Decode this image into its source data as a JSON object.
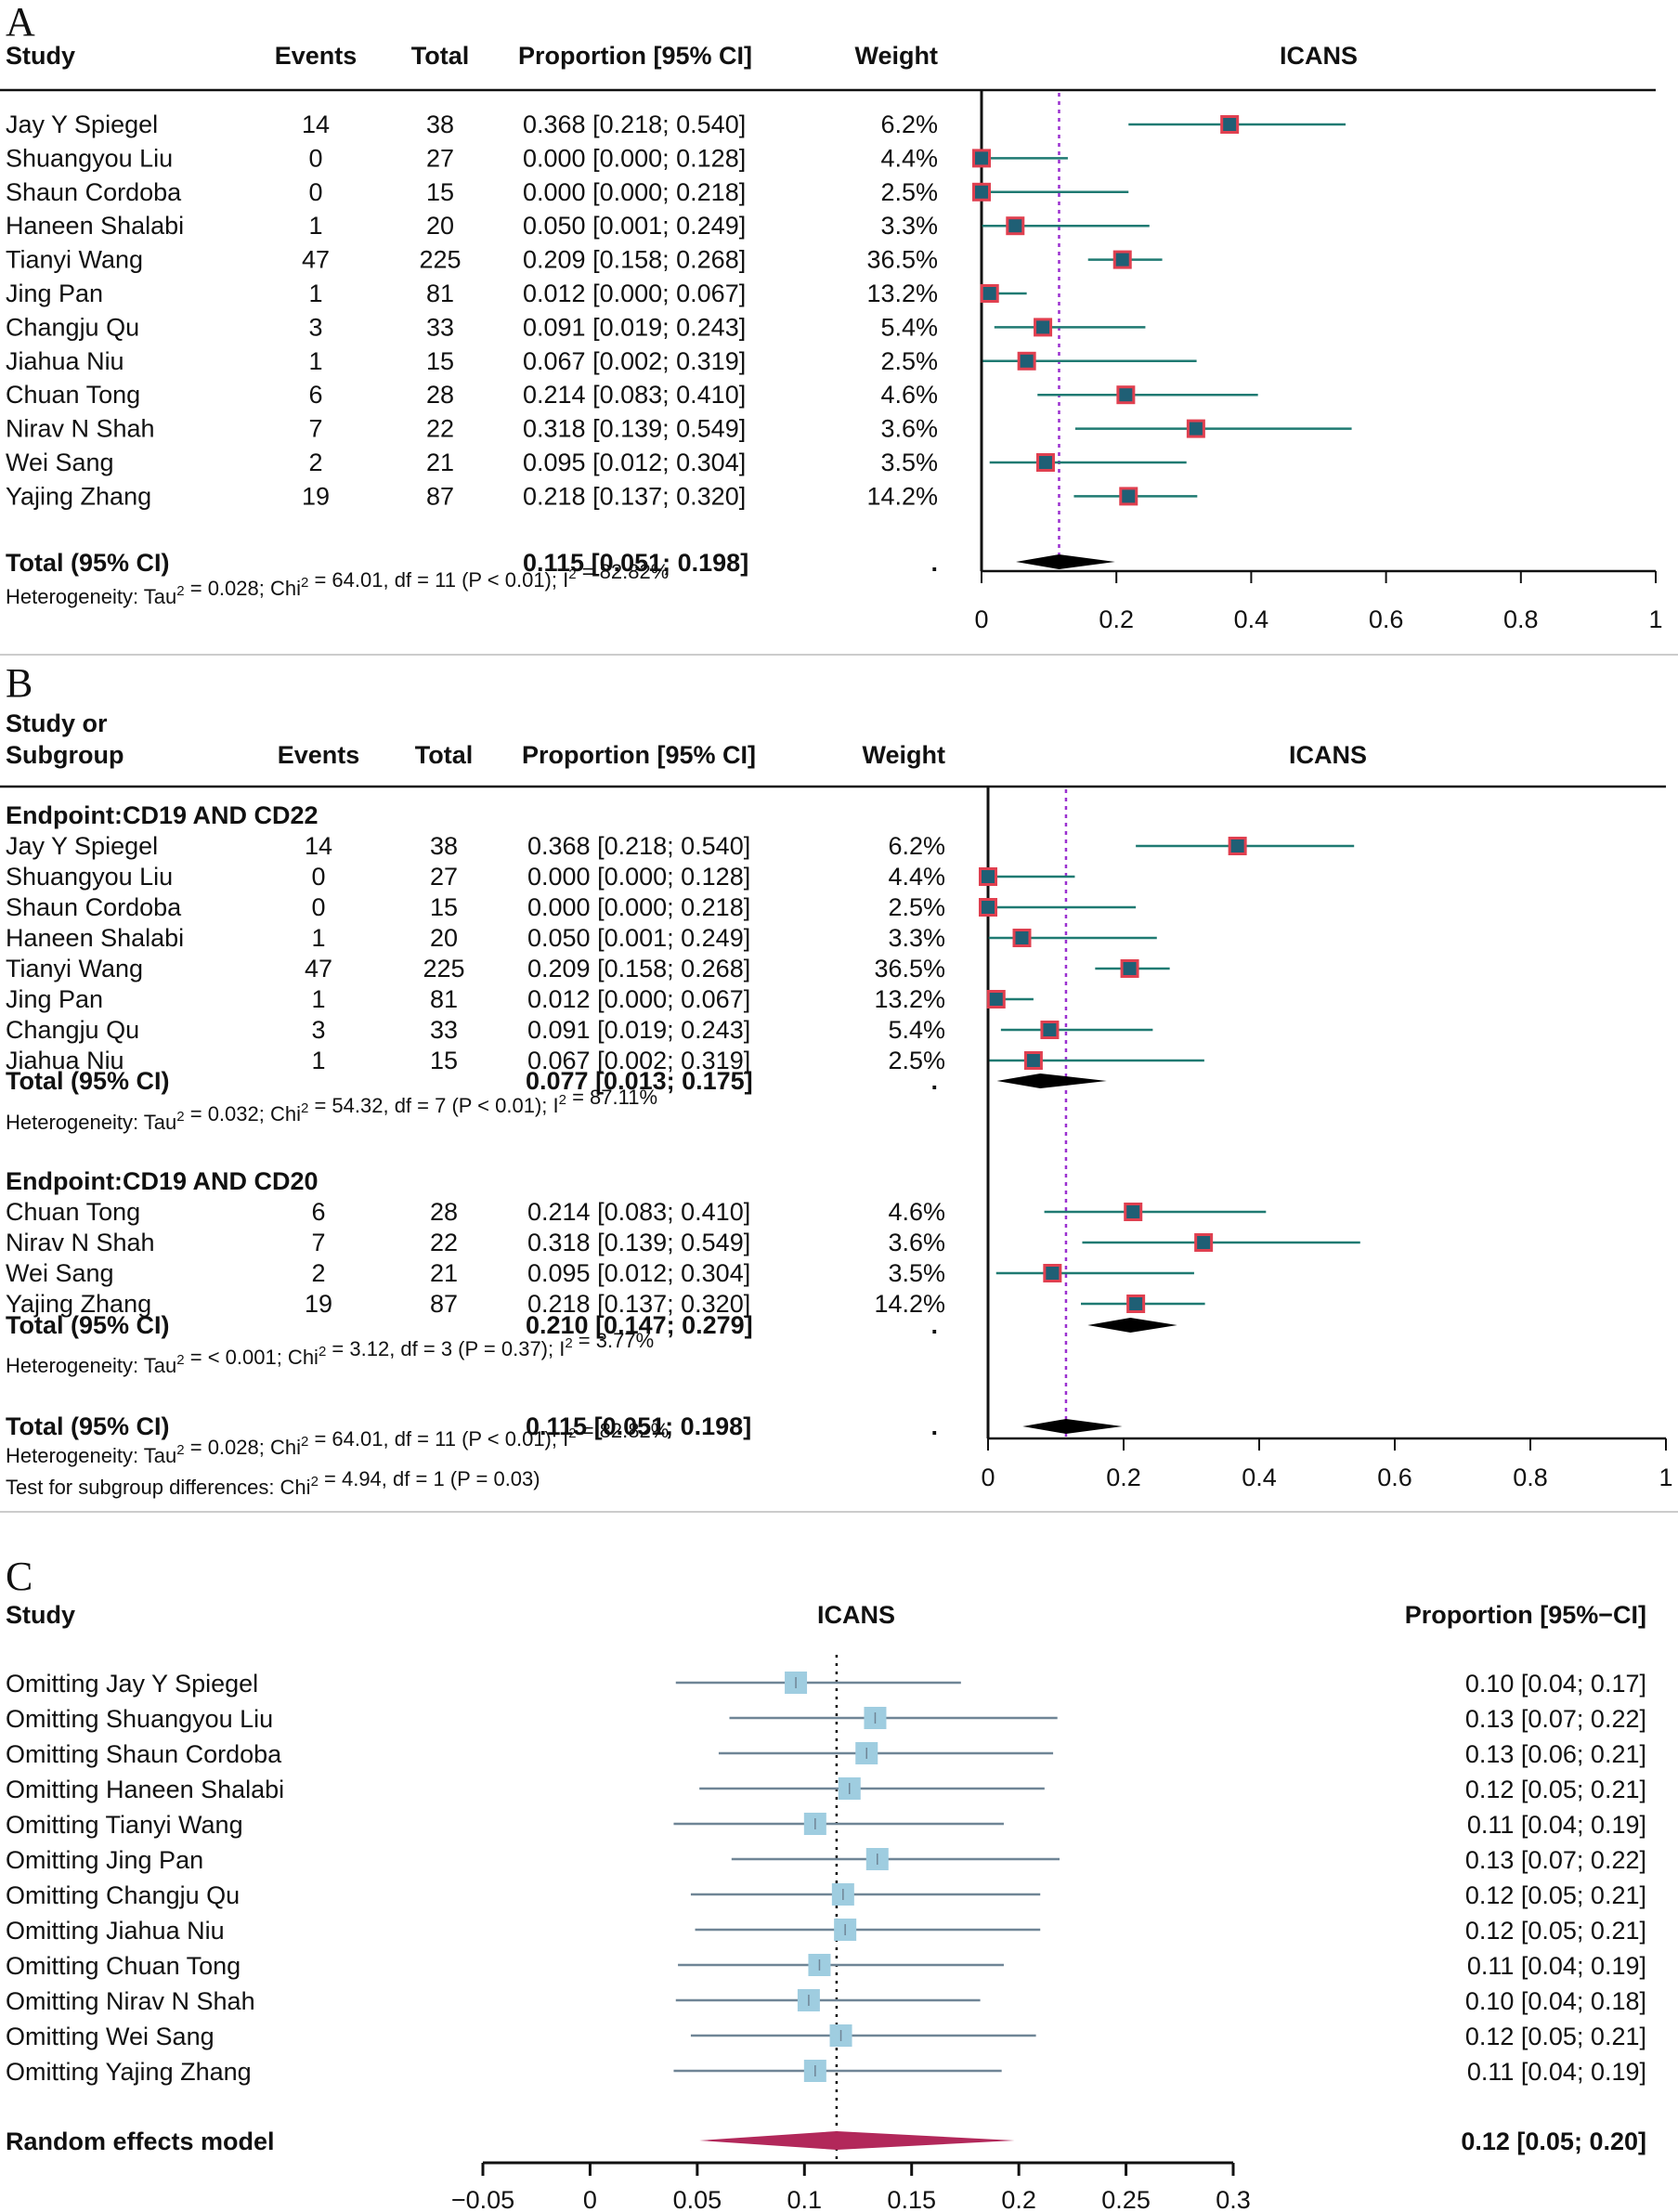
{
  "chart_data": [
    {
      "panel": "A",
      "type": "forest",
      "title": "ICANS",
      "columns": [
        "Study",
        "Events",
        "Total",
        "Proportion [95% CI]",
        "Weight"
      ],
      "studies": [
        {
          "study": "Jay Y Spiegel",
          "events": "14",
          "total": "38",
          "ci_text": "0.368 [0.218; 0.540]",
          "weight": "6.2%",
          "est": 0.368,
          "lo": 0.218,
          "hi": 0.54
        },
        {
          "study": "Shuangyou Liu",
          "events": "0",
          "total": "27",
          "ci_text": "0.000 [0.000; 0.128]",
          "weight": "4.4%",
          "est": 0.0,
          "lo": 0.0,
          "hi": 0.128
        },
        {
          "study": "Shaun Cordoba",
          "events": "0",
          "total": "15",
          "ci_text": "0.000 [0.000; 0.218]",
          "weight": "2.5%",
          "est": 0.0,
          "lo": 0.0,
          "hi": 0.218
        },
        {
          "study": "Haneen Shalabi",
          "events": "1",
          "total": "20",
          "ci_text": "0.050 [0.001; 0.249]",
          "weight": "3.3%",
          "est": 0.05,
          "lo": 0.001,
          "hi": 0.249
        },
        {
          "study": "Tianyi Wang",
          "events": "47",
          "total": "225",
          "ci_text": "0.209 [0.158; 0.268]",
          "weight": "36.5%",
          "est": 0.209,
          "lo": 0.158,
          "hi": 0.268
        },
        {
          "study": "Jing Pan",
          "events": "1",
          "total": "81",
          "ci_text": "0.012 [0.000; 0.067]",
          "weight": "13.2%",
          "est": 0.012,
          "lo": 0.0,
          "hi": 0.067
        },
        {
          "study": "Changju Qu",
          "events": "3",
          "total": "33",
          "ci_text": "0.091 [0.019; 0.243]",
          "weight": "5.4%",
          "est": 0.091,
          "lo": 0.019,
          "hi": 0.243
        },
        {
          "study": "Jiahua Niu",
          "events": "1",
          "total": "15",
          "ci_text": "0.067 [0.002; 0.319]",
          "weight": "2.5%",
          "est": 0.067,
          "lo": 0.002,
          "hi": 0.319
        },
        {
          "study": "Chuan Tong",
          "events": "6",
          "total": "28",
          "ci_text": "0.214 [0.083; 0.410]",
          "weight": "4.6%",
          "est": 0.214,
          "lo": 0.083,
          "hi": 0.41
        },
        {
          "study": "Nirav N Shah",
          "events": "7",
          "total": "22",
          "ci_text": "0.318 [0.139; 0.549]",
          "weight": "3.6%",
          "est": 0.318,
          "lo": 0.139,
          "hi": 0.549
        },
        {
          "study": "Wei Sang",
          "events": "2",
          "total": "21",
          "ci_text": "0.095 [0.012; 0.304]",
          "weight": "3.5%",
          "est": 0.095,
          "lo": 0.012,
          "hi": 0.304
        },
        {
          "study": "Yajing Zhang",
          "events": "19",
          "total": "87",
          "ci_text": "0.218 [0.137; 0.320]",
          "weight": "14.2%",
          "est": 0.218,
          "lo": 0.137,
          "hi": 0.32
        }
      ],
      "overall": {
        "label": "Total (95% CI)",
        "ci_text": "0.115 [0.051; 0.198]",
        "weight": ".",
        "est": 0.115,
        "lo": 0.051,
        "hi": 0.198
      },
      "heterogeneity": {
        "prefix": "Heterogeneity: Tau",
        "s1": "2",
        "mid1": " = 0.028; Chi",
        "s2": "2",
        "mid2": " = 64.01, df = 11 (P < 0.01); I",
        "s3": "2",
        "suffix": " = 82.82%"
      },
      "xlim": [
        0,
        1
      ],
      "ticks": [
        "0",
        "0.2",
        "0.4",
        "0.6",
        "0.8",
        "1"
      ],
      "tick_values": [
        0,
        0.2,
        0.4,
        0.6,
        0.8,
        1
      ],
      "reference_line": 0.115
    },
    {
      "panel": "B",
      "type": "forest",
      "title": "ICANS",
      "columns": [
        "Study or",
        "Subgroup",
        "Events",
        "Total",
        "Proportion [95% CI]",
        "Weight"
      ],
      "subgroups": [
        {
          "label": "Endpoint:CD19 AND CD22",
          "studies": [
            {
              "study": "Jay Y Spiegel",
              "events": "14",
              "total": "38",
              "ci_text": "0.368 [0.218; 0.540]",
              "weight": "6.2%",
              "est": 0.368,
              "lo": 0.218,
              "hi": 0.54
            },
            {
              "study": "Shuangyou Liu",
              "events": "0",
              "total": "27",
              "ci_text": "0.000 [0.000; 0.128]",
              "weight": "4.4%",
              "est": 0.0,
              "lo": 0.0,
              "hi": 0.128
            },
            {
              "study": "Shaun Cordoba",
              "events": "0",
              "total": "15",
              "ci_text": "0.000 [0.000; 0.218]",
              "weight": "2.5%",
              "est": 0.0,
              "lo": 0.0,
              "hi": 0.218
            },
            {
              "study": "Haneen Shalabi",
              "events": "1",
              "total": "20",
              "ci_text": "0.050 [0.001; 0.249]",
              "weight": "3.3%",
              "est": 0.05,
              "lo": 0.001,
              "hi": 0.249
            },
            {
              "study": "Tianyi Wang",
              "events": "47",
              "total": "225",
              "ci_text": "0.209 [0.158; 0.268]",
              "weight": "36.5%",
              "est": 0.209,
              "lo": 0.158,
              "hi": 0.268
            },
            {
              "study": "Jing Pan",
              "events": "1",
              "total": "81",
              "ci_text": "0.012 [0.000; 0.067]",
              "weight": "13.2%",
              "est": 0.012,
              "lo": 0.0,
              "hi": 0.067
            },
            {
              "study": "Changju Qu",
              "events": "3",
              "total": "33",
              "ci_text": "0.091 [0.019; 0.243]",
              "weight": "5.4%",
              "est": 0.091,
              "lo": 0.019,
              "hi": 0.243
            },
            {
              "study": "Jiahua Niu",
              "events": "1",
              "total": "15",
              "ci_text": "0.067 [0.002; 0.319]",
              "weight": "2.5%",
              "est": 0.067,
              "lo": 0.002,
              "hi": 0.319
            }
          ],
          "total": {
            "label": "Total (95% CI)",
            "ci_text": "0.077 [0.013; 0.175]",
            "weight": ".",
            "est": 0.077,
            "lo": 0.013,
            "hi": 0.175
          },
          "heterogeneity": {
            "prefix": "Heterogeneity: Tau",
            "s1": "2",
            "mid1": " = 0.032; Chi",
            "s2": "2",
            "mid2": " = 54.32, df = 7 (P < 0.01); I",
            "s3": "2",
            "suffix": " = 87.11%"
          }
        },
        {
          "label": "Endpoint:CD19 AND CD20",
          "studies": [
            {
              "study": "Chuan Tong",
              "events": "6",
              "total": "28",
              "ci_text": "0.214 [0.083; 0.410]",
              "weight": "4.6%",
              "est": 0.214,
              "lo": 0.083,
              "hi": 0.41
            },
            {
              "study": "Nirav N Shah",
              "events": "7",
              "total": "22",
              "ci_text": "0.318 [0.139; 0.549]",
              "weight": "3.6%",
              "est": 0.318,
              "lo": 0.139,
              "hi": 0.549
            },
            {
              "study": "Wei Sang",
              "events": "2",
              "total": "21",
              "ci_text": "0.095 [0.012; 0.304]",
              "weight": "3.5%",
              "est": 0.095,
              "lo": 0.012,
              "hi": 0.304
            },
            {
              "study": "Yajing Zhang",
              "events": "19",
              "total": "87",
              "ci_text": "0.218 [0.137; 0.320]",
              "weight": "14.2%",
              "est": 0.218,
              "lo": 0.137,
              "hi": 0.32
            }
          ],
          "total": {
            "label": "Total (95% CI)",
            "ci_text": "0.210 [0.147; 0.279]",
            "weight": ".",
            "est": 0.21,
            "lo": 0.147,
            "hi": 0.279
          },
          "heterogeneity": {
            "prefix": "Heterogeneity: Tau",
            "s1": "2",
            "mid1": " = < 0.001; Chi",
            "s2": "2",
            "mid2": " = 3.12, df = 3 (P = 0.37); I",
            "s3": "2",
            "suffix": " = 3.77%"
          }
        }
      ],
      "overall": {
        "label": "Total (95% CI)",
        "ci_text": "0.115 [0.051; 0.198]",
        "weight": ".",
        "est": 0.115,
        "lo": 0.051,
        "hi": 0.198
      },
      "heterogeneity": {
        "prefix": "Heterogeneity: Tau",
        "s1": "2",
        "mid1": " = 0.028; Chi",
        "s2": "2",
        "mid2": " = 64.01, df = 11 (P < 0.01); I",
        "s3": "2",
        "suffix": " = 82.82%"
      },
      "subgroup_test": {
        "prefix": "Test for subgroup differences: Chi",
        "s1": "2",
        "suffix": " = 4.94, df = 1 (P = 0.03)"
      },
      "xlim": [
        0,
        1
      ],
      "ticks": [
        "0",
        "0.2",
        "0.4",
        "0.6",
        "0.8",
        "1"
      ],
      "tick_values": [
        0,
        0.2,
        0.4,
        0.6,
        0.8,
        1
      ],
      "reference_line": 0.115
    },
    {
      "panel": "C",
      "type": "forest",
      "title": "ICANS",
      "columns": [
        "Study",
        "Proportion [95%−CI]"
      ],
      "studies": [
        {
          "study": "Omitting Jay Y Spiegel",
          "ci_text": "0.10 [0.04; 0.17]",
          "est": 0.096,
          "lo": 0.04,
          "hi": 0.173
        },
        {
          "study": "Omitting Shuangyou Liu",
          "ci_text": "0.13 [0.07; 0.22]",
          "est": 0.133,
          "lo": 0.065,
          "hi": 0.218
        },
        {
          "study": "Omitting Shaun Cordoba",
          "ci_text": "0.13 [0.06; 0.21]",
          "est": 0.129,
          "lo": 0.06,
          "hi": 0.216
        },
        {
          "study": "Omitting Haneen Shalabi",
          "ci_text": "0.12 [0.05; 0.21]",
          "est": 0.121,
          "lo": 0.051,
          "hi": 0.212
        },
        {
          "study": "Omitting Tianyi Wang",
          "ci_text": "0.11 [0.04; 0.19]",
          "est": 0.105,
          "lo": 0.039,
          "hi": 0.193
        },
        {
          "study": "Omitting Jing Pan",
          "ci_text": "0.13 [0.07; 0.22]",
          "est": 0.134,
          "lo": 0.066,
          "hi": 0.219
        },
        {
          "study": "Omitting Changju Qu",
          "ci_text": "0.12 [0.05; 0.21]",
          "est": 0.118,
          "lo": 0.047,
          "hi": 0.21
        },
        {
          "study": "Omitting Jiahua Niu",
          "ci_text": "0.12 [0.05; 0.21]",
          "est": 0.119,
          "lo": 0.049,
          "hi": 0.21
        },
        {
          "study": "Omitting Chuan Tong",
          "ci_text": "0.11 [0.04; 0.19]",
          "est": 0.107,
          "lo": 0.041,
          "hi": 0.193
        },
        {
          "study": "Omitting Nirav N Shah",
          "ci_text": "0.10 [0.04; 0.18]",
          "est": 0.102,
          "lo": 0.04,
          "hi": 0.182
        },
        {
          "study": "Omitting Wei Sang",
          "ci_text": "0.12 [0.05; 0.21]",
          "est": 0.117,
          "lo": 0.047,
          "hi": 0.208
        },
        {
          "study": "Omitting Yajing Zhang",
          "ci_text": "0.11 [0.04; 0.19]",
          "est": 0.105,
          "lo": 0.039,
          "hi": 0.192
        }
      ],
      "overall": {
        "label": "Random effects model",
        "ci_text": "0.12 [0.05; 0.20]",
        "est": 0.115,
        "lo": 0.051,
        "hi": 0.198
      },
      "xlim": [
        -0.05,
        0.3
      ],
      "ticks": [
        "−0.05",
        "0",
        "0.05",
        "0.1",
        "0.15",
        "0.2",
        "0.25",
        "0.3"
      ],
      "tick_values": [
        -0.05,
        0,
        0.05,
        0.1,
        0.15,
        0.2,
        0.25,
        0.3
      ],
      "reference_line": 0.115
    }
  ],
  "colors": {
    "ci_line_ab": "#1f7a72",
    "marker_fill_ab": "#1f5f75",
    "marker_border_ab": "#e04050",
    "reference_ab": "#9b30d0",
    "ci_line_c": "#6f8596",
    "marker_fill_c": "#9fcde0",
    "overall_c": "#b2285a",
    "subgroup_text": "#a6a6a6",
    "separator": "#cccccc"
  }
}
